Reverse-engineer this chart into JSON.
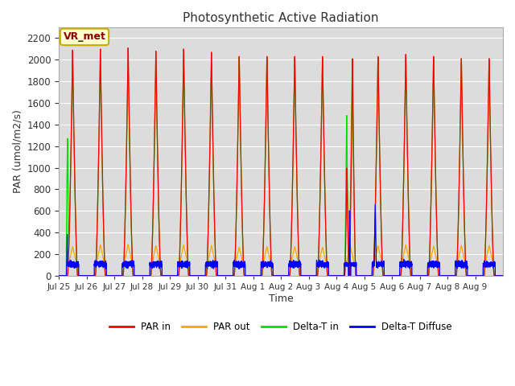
{
  "title": "Photosynthetic Active Radiation",
  "ylabel": "PAR (umol/m2/s)",
  "xlabel": "Time",
  "annotation": "VR_met",
  "ylim": [
    0,
    2300
  ],
  "yticks": [
    0,
    200,
    400,
    600,
    800,
    1000,
    1200,
    1400,
    1600,
    1800,
    2000,
    2200
  ],
  "xtick_labels": [
    "Jul 25",
    "Jul 26",
    "Jul 27",
    "Jul 28",
    "Jul 29",
    "Jul 30",
    "Jul 31",
    "Aug 1",
    "Aug 2",
    "Aug 3",
    "Aug 4",
    "Aug 5",
    "Aug 6",
    "Aug 7",
    "Aug 8",
    "Aug 9"
  ],
  "colors": {
    "PAR_in": "#ff0000",
    "PAR_out": "#ffa500",
    "Delta_T_in": "#00dd00",
    "Delta_T_Diffuse": "#0000ff"
  },
  "legend_labels": [
    "PAR in",
    "PAR out",
    "Delta-T in",
    "Delta-T Diffuse"
  ],
  "n_days": 16,
  "bg_color": "#dcdcdc",
  "fig_bg": "#ffffff"
}
